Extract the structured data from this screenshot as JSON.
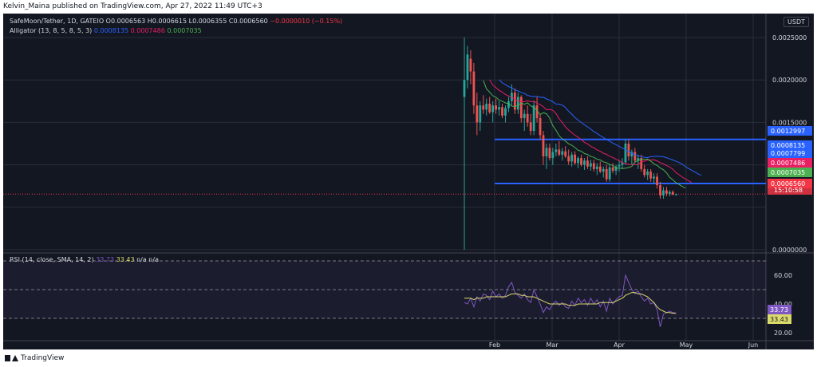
{
  "publisher": "Kelvin_Maina published on TradingView.com, Apr 27, 2022 11:49 UTC+3",
  "footer_brand": "TradingView",
  "currency_badge": "USDT",
  "legend": {
    "symbol": "SafeMoon/Tether, 1D, GATEIO",
    "o_label": "O",
    "o": "0.0006563",
    "h_label": "H",
    "h": "0.0006615",
    "l_label": "L",
    "l": "0.0006355",
    "c_label": "C",
    "c": "0.0006560",
    "change": "−0.0000010 (−0.15%)",
    "alligator_label": "Alligator (13, 8, 5, 8, 5, 3)",
    "alligator_jaw": "0.0008135",
    "alligator_teeth": "0.0007486",
    "alligator_lips": "0.0007035",
    "rsi_label": "RSI (14, close, SMA, 14, 2)",
    "rsi_value": "33.73",
    "rsi_sma": "33.43",
    "rsi_na": "n/a n/a"
  },
  "colors": {
    "background": "#131722",
    "grid": "#2a2e39",
    "up": "#26a69a",
    "down": "#ef5350",
    "jaw": "#2962ff",
    "teeth": "#e91e63",
    "lips": "#4caf50",
    "hline": "#2962ff",
    "rsi": "#7e57c2",
    "rsi_sma": "#dada6a"
  },
  "price_axis": {
    "ticks": [
      "0.0025000",
      "0.0020000",
      "0.0015000",
      "0.0000000"
    ]
  },
  "price_badges": [
    {
      "label": "0.0012997",
      "value": 0.0012997,
      "color": "#2962ff"
    },
    {
      "label": "0.0008135",
      "value": 0.0008135,
      "color": "#2962ff"
    },
    {
      "label": "0.0007799",
      "value": 0.0007799,
      "color": "#2962ff"
    },
    {
      "label": "0.0007486",
      "value": 0.0007486,
      "color": "#e91e63"
    },
    {
      "label": "0.0007035",
      "value": 0.0007035,
      "color": "#4caf50"
    },
    {
      "label": "0.0006560",
      "value": 0.000656,
      "color": "#f23645"
    }
  ],
  "countdown": "15:10:58",
  "rsi_axis": {
    "ticks": [
      "60.00",
      "40.00",
      "20.00"
    ]
  },
  "rsi_badges": [
    {
      "label": "33.73",
      "color": "#7e57c2"
    },
    {
      "label": "33.43",
      "color": "#dada6a"
    }
  ],
  "time_axis": {
    "labels": [
      "Feb",
      "Mar",
      "Apr",
      "May",
      "Jun"
    ]
  },
  "chart_data": {
    "type": "candlestick",
    "price_min": 0.0,
    "price_max": 0.0025,
    "horizontal_lines": [
      0.0012997,
      0.0007799
    ],
    "candles": [
      [
        0.0018,
        0.0025,
        0.0,
        0.002
      ],
      [
        0.002,
        0.0024,
        0.0019,
        0.0023
      ],
      [
        0.00225,
        0.00235,
        0.00195,
        0.0021
      ],
      [
        0.0021,
        0.0022,
        0.0016,
        0.0017
      ],
      [
        0.0017,
        0.00185,
        0.00135,
        0.0015
      ],
      [
        0.0015,
        0.00175,
        0.0014,
        0.0017
      ],
      [
        0.0017,
        0.00182,
        0.0016,
        0.00165
      ],
      [
        0.00165,
        0.00178,
        0.00158,
        0.00172
      ],
      [
        0.00172,
        0.0018,
        0.0016,
        0.00162
      ],
      [
        0.00162,
        0.00175,
        0.0015,
        0.0017
      ],
      [
        0.0017,
        0.00178,
        0.0016,
        0.00165
      ],
      [
        0.00165,
        0.00175,
        0.00158,
        0.00168
      ],
      [
        0.00168,
        0.00172,
        0.00155,
        0.00158
      ],
      [
        0.00158,
        0.0017,
        0.0015,
        0.00167
      ],
      [
        0.00167,
        0.0018,
        0.00162,
        0.00175
      ],
      [
        0.00175,
        0.00195,
        0.0017,
        0.00185
      ],
      [
        0.00185,
        0.0019,
        0.0016,
        0.00165
      ],
      [
        0.00165,
        0.00185,
        0.0016,
        0.0018
      ],
      [
        0.0018,
        0.00182,
        0.0015,
        0.00155
      ],
      [
        0.00155,
        0.00165,
        0.0014,
        0.0016
      ],
      [
        0.0016,
        0.0017,
        0.00145,
        0.0015
      ],
      [
        0.0015,
        0.0016,
        0.00135,
        0.0014
      ],
      [
        0.0014,
        0.00175,
        0.00135,
        0.0017
      ],
      [
        0.0017,
        0.0018,
        0.0015,
        0.00155
      ],
      [
        0.00155,
        0.0016,
        0.0013,
        0.00135
      ],
      [
        0.00135,
        0.0014,
        0.001,
        0.0011
      ],
      [
        0.0011,
        0.00125,
        0.00095,
        0.0012
      ],
      [
        0.0012,
        0.00125,
        0.00105,
        0.00108
      ],
      [
        0.00108,
        0.0012,
        0.001,
        0.00115
      ],
      [
        0.00115,
        0.00125,
        0.0011,
        0.00118
      ],
      [
        0.00118,
        0.00128,
        0.0011,
        0.00112
      ],
      [
        0.00112,
        0.0012,
        0.00105,
        0.00116
      ],
      [
        0.00116,
        0.00122,
        0.00108,
        0.0011
      ],
      [
        0.0011,
        0.00118,
        0.001,
        0.00104
      ],
      [
        0.00104,
        0.00115,
        0.00098,
        0.00112
      ],
      [
        0.00112,
        0.00116,
        0.001,
        0.00102
      ],
      [
        0.00102,
        0.0011,
        0.00096,
        0.00108
      ],
      [
        0.00108,
        0.00112,
        0.00098,
        0.001
      ],
      [
        0.001,
        0.00108,
        0.00094,
        0.00105
      ],
      [
        0.00105,
        0.0011,
        0.00095,
        0.00098
      ],
      [
        0.00098,
        0.00106,
        0.00093,
        0.00102
      ],
      [
        0.00102,
        0.00106,
        0.00092,
        0.00095
      ],
      [
        0.00095,
        0.00102,
        0.00088,
        0.00098
      ],
      [
        0.00098,
        0.00104,
        0.0009,
        0.00092
      ],
      [
        0.00092,
        0.00098,
        0.00085,
        0.00095
      ],
      [
        0.00095,
        0.001,
        0.0008,
        0.00083
      ],
      [
        0.00083,
        0.001,
        0.0008,
        0.00097
      ],
      [
        0.00097,
        0.00102,
        0.0009,
        0.00093
      ],
      [
        0.00093,
        0.001,
        0.00088,
        0.00098
      ],
      [
        0.00098,
        0.00105,
        0.00092,
        0.001
      ],
      [
        0.001,
        0.00108,
        0.00095,
        0.00103
      ],
      [
        0.00103,
        0.0013,
        0.001,
        0.00125
      ],
      [
        0.00125,
        0.0013,
        0.00105,
        0.0011
      ],
      [
        0.0011,
        0.00118,
        0.001,
        0.00115
      ],
      [
        0.00115,
        0.0012,
        0.00102,
        0.00105
      ],
      [
        0.00105,
        0.00112,
        0.00095,
        0.00108
      ],
      [
        0.00108,
        0.00112,
        0.00092,
        0.00095
      ],
      [
        0.00095,
        0.001,
        0.00085,
        0.00088
      ],
      [
        0.00088,
        0.00095,
        0.00082,
        0.00092
      ],
      [
        0.00092,
        0.00095,
        0.0008,
        0.00084
      ],
      [
        0.00084,
        0.0009,
        0.00078,
        0.00086
      ],
      [
        0.00086,
        0.0009,
        0.00072,
        0.00076
      ],
      [
        0.00076,
        0.0008,
        0.0006,
        0.00064
      ],
      [
        0.00064,
        0.00074,
        0.0006,
        0.0007
      ],
      [
        0.0007,
        0.00074,
        0.00063,
        0.00066
      ],
      [
        0.00066,
        0.0007,
        0.00063,
        0.00068
      ],
      [
        0.00068,
        0.0007,
        0.00064,
        0.00065
      ],
      [
        0.000656,
        0.0006615,
        0.0006355,
        0.000656
      ]
    ],
    "alligator": {
      "jaw": {
        "name": "Jaw",
        "value": 0.0008135
      },
      "teeth": {
        "name": "Teeth",
        "value": 0.0007486
      },
      "lips": {
        "name": "Lips",
        "value": 0.0007035
      }
    },
    "rsi": {
      "min": 20,
      "max": 70,
      "levels": [
        70,
        50,
        30
      ],
      "values": [
        41,
        40,
        44,
        38,
        45,
        42,
        47,
        46,
        43,
        49,
        45,
        47,
        44,
        46,
        52,
        55,
        48,
        46,
        44,
        47,
        43,
        41,
        50,
        45,
        40,
        34,
        38,
        36,
        40,
        42,
        39,
        41,
        38,
        37,
        42,
        39,
        44,
        41,
        43,
        39,
        44,
        40,
        43,
        38,
        42,
        35,
        44,
        40,
        43,
        45,
        46,
        60,
        55,
        50,
        47,
        49,
        45,
        42,
        44,
        40,
        41,
        36,
        24,
        33,
        34,
        35,
        34,
        33.73
      ],
      "sma": [
        44,
        44,
        44,
        43,
        44,
        44,
        44,
        45,
        45,
        45,
        45,
        45,
        45,
        45,
        46,
        47,
        47,
        47,
        46,
        46,
        45,
        45,
        45,
        44,
        43,
        42,
        41,
        40,
        40,
        40,
        40,
        40,
        40,
        39,
        39,
        39,
        40,
        40,
        40,
        40,
        40,
        40,
        40,
        41,
        41,
        41,
        41,
        41,
        42,
        43,
        44,
        46,
        47,
        48,
        48,
        47,
        47,
        46,
        45,
        43,
        41,
        38,
        36,
        35,
        34,
        34,
        33.5,
        33.43
      ]
    }
  }
}
